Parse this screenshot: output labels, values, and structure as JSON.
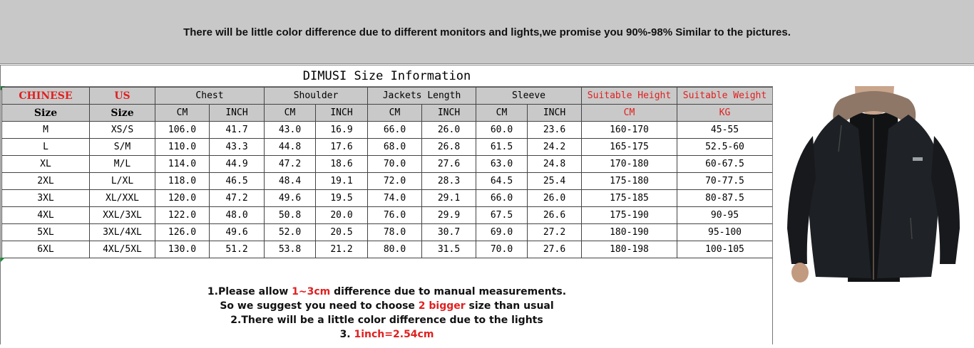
{
  "banner": {
    "text": "There will be little color difference due to different monitors and lights,we promise you 90%-98%  Similar to the pictures."
  },
  "title": "DIMUSI  Size Information",
  "table": {
    "groups": [
      "CHINESE",
      "US",
      "Chest",
      "Shoulder",
      "Jackets Length",
      "Sleeve",
      "Suitable Height",
      "Suitable Weight"
    ],
    "subheaders": [
      "Size",
      "Size",
      "CM",
      "INCH",
      "CM",
      "INCH",
      "CM",
      "INCH",
      "CM",
      "INCH",
      "CM",
      "KG"
    ],
    "rows": [
      [
        "M",
        "XS/S",
        "106.0",
        "41.7",
        "43.0",
        "16.9",
        "66.0",
        "26.0",
        "60.0",
        "23.6",
        "160-170",
        "45-55"
      ],
      [
        "L",
        "S/M",
        "110.0",
        "43.3",
        "44.8",
        "17.6",
        "68.0",
        "26.8",
        "61.5",
        "24.2",
        "165-175",
        "52.5-60"
      ],
      [
        "XL",
        "M/L",
        "114.0",
        "44.9",
        "47.2",
        "18.6",
        "70.0",
        "27.6",
        "63.0",
        "24.8",
        "170-180",
        "60-67.5"
      ],
      [
        "2XL",
        "L/XL",
        "118.0",
        "46.5",
        "48.4",
        "19.1",
        "72.0",
        "28.3",
        "64.5",
        "25.4",
        "175-180",
        "70-77.5"
      ],
      [
        "3XL",
        "XL/XXL",
        "120.0",
        "47.2",
        "49.6",
        "19.5",
        "74.0",
        "29.1",
        "66.0",
        "26.0",
        "175-185",
        "80-87.5"
      ],
      [
        "4XL",
        "XXL/3XL",
        "122.0",
        "48.0",
        "50.8",
        "20.0",
        "76.0",
        "29.9",
        "67.5",
        "26.6",
        "175-190",
        "90-95"
      ],
      [
        "5XL",
        "3XL/4XL",
        "126.0",
        "49.6",
        "52.0",
        "20.5",
        "78.0",
        "30.7",
        "69.0",
        "27.2",
        "180-190",
        "95-100"
      ],
      [
        "6XL",
        "4XL/5XL",
        "130.0",
        "51.2",
        "53.8",
        "21.2",
        "80.0",
        "31.5",
        "70.0",
        "27.6",
        "180-198",
        "100-105"
      ]
    ]
  },
  "notes": {
    "line1_pre": "1.Please allow ",
    "line1_hl": "1~3cm",
    "line1_post": " difference due to manual measurements.",
    "line2_pre": "So we suggest you need to choose ",
    "line2_hl": "2 bigger",
    "line2_post": " size than usual",
    "line3": "2.There will be a little color difference due to the lights",
    "line4_pre": "3. ",
    "line4_hl": "1inch=2.54cm"
  },
  "colors": {
    "banner_bg": "#c8c8c8",
    "header_bg": "#c9c9c9",
    "highlight": "#e02020",
    "jacket": "#1d2024"
  }
}
